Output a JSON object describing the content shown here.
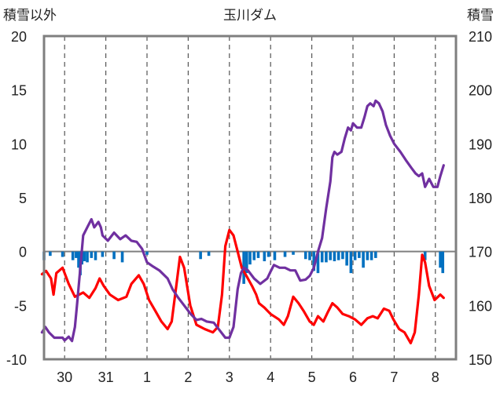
{
  "chart_data": {
    "type": "line",
    "title": "玉川ダム",
    "left_axis_label": "積雪以外",
    "right_axis_label": "積雪",
    "x_tick_labels": [
      "30",
      "31",
      "1",
      "2",
      "3",
      "4",
      "5",
      "6",
      "7",
      "8"
    ],
    "x_range": [
      -0.5,
      9.5
    ],
    "y_left_range": [
      -10,
      20
    ],
    "y_left_ticks": [
      -10,
      -5,
      0,
      5,
      10,
      15,
      20
    ],
    "y_right_range": [
      150,
      210
    ],
    "y_right_ticks": [
      150,
      160,
      170,
      180,
      190,
      200,
      210
    ],
    "grid": "dashed-vertical-days",
    "colors": {
      "temperature": "#ff0000",
      "snow_depth": "#7030a0",
      "precipitation": "#0070c0",
      "frame": "#7f7f7f"
    },
    "series": [
      {
        "axis": "left",
        "style": "line",
        "color": "#ff0000",
        "points": [
          [
            -0.55,
            -2.1
          ],
          [
            -0.45,
            -1.8
          ],
          [
            -0.33,
            -2.5
          ],
          [
            -0.27,
            -4.0
          ],
          [
            -0.2,
            -2.0
          ],
          [
            -0.05,
            -1.5
          ],
          [
            0.1,
            -3.0
          ],
          [
            0.25,
            -4.2
          ],
          [
            0.45,
            -3.8
          ],
          [
            0.6,
            -4.3
          ],
          [
            0.75,
            -3.4
          ],
          [
            0.85,
            -2.5
          ],
          [
            0.95,
            -3.2
          ],
          [
            1.1,
            -4.0
          ],
          [
            1.3,
            -4.5
          ],
          [
            1.5,
            -4.2
          ],
          [
            1.62,
            -3.0
          ],
          [
            1.8,
            -2.2
          ],
          [
            1.92,
            -3.0
          ],
          [
            2.05,
            -4.5
          ],
          [
            2.2,
            -5.5
          ],
          [
            2.35,
            -6.5
          ],
          [
            2.5,
            -7.2
          ],
          [
            2.6,
            -6.5
          ],
          [
            2.7,
            -3.5
          ],
          [
            2.8,
            -0.5
          ],
          [
            2.9,
            -1.5
          ],
          [
            3.05,
            -5.0
          ],
          [
            3.2,
            -6.8
          ],
          [
            3.4,
            -7.2
          ],
          [
            3.6,
            -7.5
          ],
          [
            3.72,
            -7.0
          ],
          [
            3.82,
            -4.0
          ],
          [
            3.9,
            0.5
          ],
          [
            4.0,
            2.0
          ],
          [
            4.1,
            1.5
          ],
          [
            4.2,
            0.0
          ],
          [
            4.3,
            -1.5
          ],
          [
            4.42,
            -2.3
          ],
          [
            4.55,
            -3.2
          ],
          [
            4.65,
            -4.0
          ],
          [
            4.72,
            -4.8
          ],
          [
            4.85,
            -5.2
          ],
          [
            5.0,
            -5.8
          ],
          [
            5.2,
            -6.3
          ],
          [
            5.32,
            -6.8
          ],
          [
            5.42,
            -6.0
          ],
          [
            5.55,
            -4.2
          ],
          [
            5.68,
            -4.8
          ],
          [
            5.8,
            -5.5
          ],
          [
            5.95,
            -6.5
          ],
          [
            6.05,
            -6.8
          ],
          [
            6.15,
            -6.0
          ],
          [
            6.28,
            -6.5
          ],
          [
            6.38,
            -5.7
          ],
          [
            6.5,
            -4.8
          ],
          [
            6.62,
            -5.2
          ],
          [
            6.75,
            -5.8
          ],
          [
            6.9,
            -6.0
          ],
          [
            7.05,
            -6.3
          ],
          [
            7.2,
            -6.8
          ],
          [
            7.35,
            -6.2
          ],
          [
            7.48,
            -6.0
          ],
          [
            7.6,
            -6.2
          ],
          [
            7.75,
            -5.3
          ],
          [
            7.88,
            -5.5
          ],
          [
            7.98,
            -6.3
          ],
          [
            8.12,
            -7.2
          ],
          [
            8.25,
            -7.5
          ],
          [
            8.4,
            -8.5
          ],
          [
            8.5,
            -7.5
          ],
          [
            8.6,
            -4.0
          ],
          [
            8.68,
            -0.3
          ],
          [
            8.75,
            -1.0
          ],
          [
            8.85,
            -3.2
          ],
          [
            8.98,
            -4.5
          ],
          [
            9.12,
            -4.0
          ],
          [
            9.2,
            -4.3
          ]
        ]
      },
      {
        "axis": "right",
        "style": "line",
        "color": "#7030a0",
        "points": [
          [
            -0.55,
            155.0
          ],
          [
            -0.47,
            156.0
          ],
          [
            -0.38,
            155.0
          ],
          [
            -0.25,
            154.0
          ],
          [
            -0.05,
            154.0
          ],
          [
            0.0,
            153.5
          ],
          [
            0.1,
            154.2
          ],
          [
            0.18,
            153.4
          ],
          [
            0.25,
            156.0
          ],
          [
            0.3,
            160.0
          ],
          [
            0.37,
            166.0
          ],
          [
            0.45,
            173.0
          ],
          [
            0.55,
            174.5
          ],
          [
            0.65,
            176.0
          ],
          [
            0.72,
            174.5
          ],
          [
            0.82,
            175.5
          ],
          [
            0.88,
            174.5
          ],
          [
            0.92,
            173.0
          ],
          [
            1.05,
            172.0
          ],
          [
            1.2,
            173.5
          ],
          [
            1.35,
            172.3
          ],
          [
            1.48,
            173.0
          ],
          [
            1.62,
            172.0
          ],
          [
            1.75,
            171.8
          ],
          [
            1.88,
            170.5
          ],
          [
            2.0,
            168.0
          ],
          [
            2.15,
            167.2
          ],
          [
            2.3,
            166.5
          ],
          [
            2.5,
            165.0
          ],
          [
            2.62,
            163.0
          ],
          [
            2.75,
            161.5
          ],
          [
            2.9,
            160.0
          ],
          [
            3.05,
            158.5
          ],
          [
            3.2,
            157.3
          ],
          [
            3.32,
            157.5
          ],
          [
            3.45,
            157.0
          ],
          [
            3.62,
            156.8
          ],
          [
            3.75,
            155.5
          ],
          [
            3.9,
            154.0
          ],
          [
            4.0,
            154.0
          ],
          [
            4.1,
            156.0
          ],
          [
            4.2,
            163.0
          ],
          [
            4.28,
            166.0
          ],
          [
            4.35,
            167.0
          ],
          [
            4.45,
            166.5
          ],
          [
            4.6,
            165.0
          ],
          [
            4.75,
            164.0
          ],
          [
            4.92,
            165.0
          ],
          [
            5.0,
            166.3
          ],
          [
            5.08,
            167.5
          ],
          [
            5.22,
            167.0
          ],
          [
            5.35,
            167.0
          ],
          [
            5.48,
            166.5
          ],
          [
            5.6,
            166.5
          ],
          [
            5.72,
            164.6
          ],
          [
            5.85,
            164.8
          ],
          [
            5.95,
            165.5
          ],
          [
            6.05,
            167.0
          ],
          [
            6.15,
            170.0
          ],
          [
            6.25,
            172.5
          ],
          [
            6.35,
            178.0
          ],
          [
            6.45,
            183.0
          ],
          [
            6.5,
            187.5
          ],
          [
            6.55,
            188.5
          ],
          [
            6.62,
            188.0
          ],
          [
            6.72,
            188.5
          ],
          [
            6.8,
            191.0
          ],
          [
            6.88,
            193.0
          ],
          [
            6.95,
            192.5
          ],
          [
            7.0,
            193.8
          ],
          [
            7.1,
            193.0
          ],
          [
            7.2,
            193.0
          ],
          [
            7.28,
            195.0
          ],
          [
            7.35,
            197.0
          ],
          [
            7.42,
            197.5
          ],
          [
            7.5,
            197.0
          ],
          [
            7.55,
            198.0
          ],
          [
            7.63,
            197.5
          ],
          [
            7.72,
            196.0
          ],
          [
            7.8,
            193.5
          ],
          [
            7.9,
            191.5
          ],
          [
            8.0,
            190.0
          ],
          [
            8.15,
            188.5
          ],
          [
            8.28,
            187.0
          ],
          [
            8.42,
            185.5
          ],
          [
            8.52,
            184.5
          ],
          [
            8.6,
            184.0
          ],
          [
            8.68,
            184.5
          ],
          [
            8.75,
            182.0
          ],
          [
            8.85,
            183.5
          ],
          [
            8.95,
            182.0
          ],
          [
            9.05,
            182.0
          ],
          [
            9.12,
            184.0
          ],
          [
            9.2,
            186.0
          ]
        ]
      },
      {
        "axis": "left",
        "style": "bar",
        "color": "#0070c0",
        "points": [
          [
            -0.5,
            -0.8
          ],
          [
            -0.35,
            -0.4
          ],
          [
            -0.05,
            -0.5
          ],
          [
            0.2,
            -0.8
          ],
          [
            0.28,
            -0.6
          ],
          [
            0.34,
            -1.5
          ],
          [
            0.38,
            -2.2
          ],
          [
            0.42,
            -1.2
          ],
          [
            0.48,
            -0.9
          ],
          [
            0.55,
            -1.0
          ],
          [
            0.65,
            -0.6
          ],
          [
            0.75,
            -0.8
          ],
          [
            0.92,
            -0.5
          ],
          [
            1.2,
            -0.7
          ],
          [
            1.4,
            -1.0
          ],
          [
            2.0,
            -0.3
          ],
          [
            3.3,
            -0.7
          ],
          [
            3.5,
            -0.4
          ],
          [
            4.35,
            -3.0
          ],
          [
            4.42,
            -2.0
          ],
          [
            4.5,
            -1.2
          ],
          [
            4.6,
            -0.8
          ],
          [
            4.7,
            -0.6
          ],
          [
            4.85,
            -0.9
          ],
          [
            4.95,
            -0.5
          ],
          [
            5.1,
            -0.8
          ],
          [
            5.35,
            -0.5
          ],
          [
            5.55,
            -0.3
          ],
          [
            5.85,
            -0.7
          ],
          [
            5.95,
            -0.8
          ],
          [
            6.05,
            -1.8
          ],
          [
            6.15,
            -2.0
          ],
          [
            6.25,
            -1.0
          ],
          [
            6.35,
            -1.0
          ],
          [
            6.45,
            -0.8
          ],
          [
            6.55,
            -0.9
          ],
          [
            6.65,
            -0.8
          ],
          [
            6.75,
            -0.7
          ],
          [
            6.85,
            -1.3
          ],
          [
            6.95,
            -2.0
          ],
          [
            7.05,
            -0.8
          ],
          [
            7.15,
            -0.6
          ],
          [
            7.25,
            -1.5
          ],
          [
            7.35,
            -0.8
          ],
          [
            7.45,
            -0.8
          ],
          [
            7.55,
            -0.6
          ],
          [
            8.75,
            -0.8
          ],
          [
            9.12,
            -1.5
          ],
          [
            9.18,
            -2.0
          ]
        ]
      }
    ]
  }
}
